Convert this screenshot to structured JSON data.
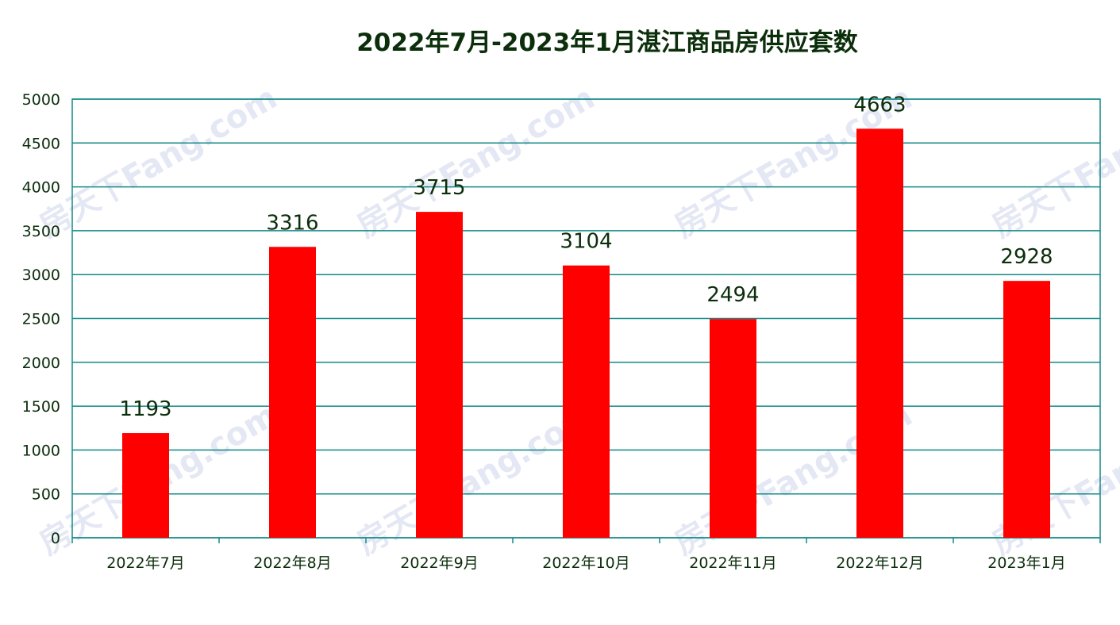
{
  "chart_data": {
    "type": "bar",
    "title": "2022年7月-2023年1月湛江商品房供应套数",
    "categories": [
      "2022年7月",
      "2022年8月",
      "2022年9月",
      "2022年10月",
      "2022年11月",
      "2022年12月",
      "2023年1月"
    ],
    "values": [
      1193,
      3316,
      3715,
      3104,
      2494,
      4663,
      2928
    ],
    "ylim": [
      0,
      5000
    ],
    "yticks": [
      0,
      500,
      1000,
      1500,
      2000,
      2500,
      3000,
      3500,
      4000,
      4500,
      5000
    ],
    "grid": true,
    "legend": "none",
    "bar_color": "#ff0000",
    "axis_color": "#138a88"
  },
  "watermark": "房天下Fang.com"
}
